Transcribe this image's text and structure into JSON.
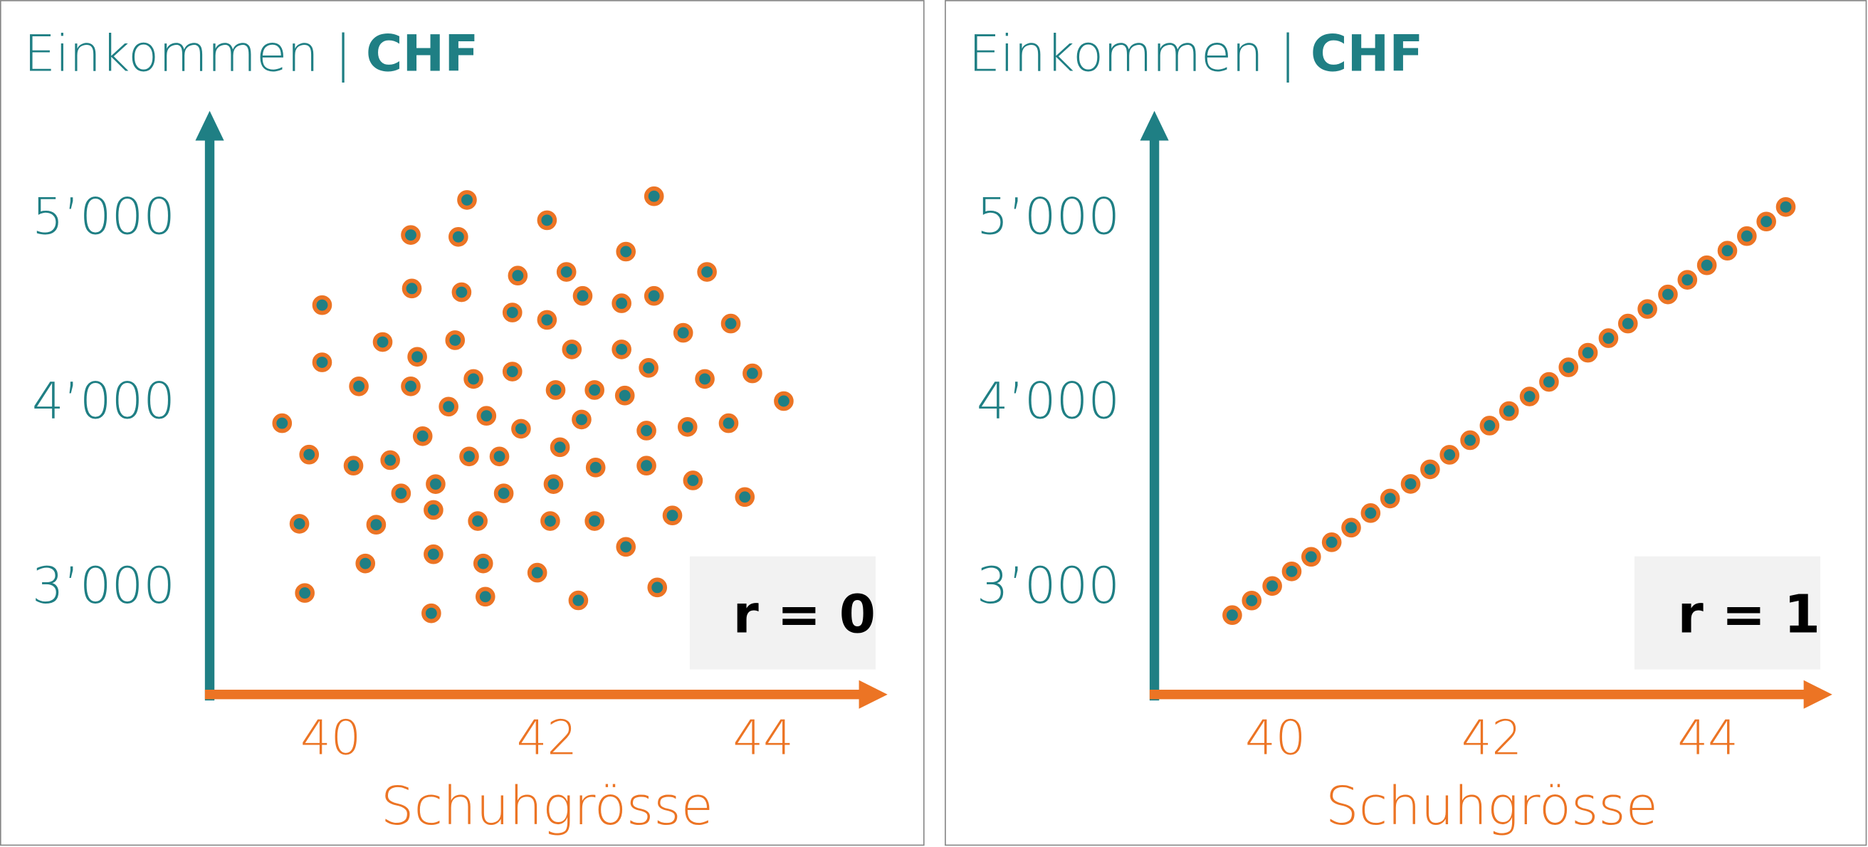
{
  "chart_data": [
    {
      "type": "scatter",
      "ylabel": "Einkommen |",
      "yunit": "CHF",
      "xlabel": "Schuhgrösse",
      "annotation": "r = 0",
      "marker_fill": "#1f7f84",
      "marker_edge": "#ec7424",
      "xlim": [
        38.88,
        45.15
      ],
      "ylim": [
        2430,
        5580
      ],
      "xticks": [
        40,
        42,
        44
      ],
      "yticks": [
        {
          "value": 3000,
          "label": "3’000"
        },
        {
          "value": 4000,
          "label": "4’000"
        },
        {
          "value": 5000,
          "label": "5’000"
        }
      ],
      "x": [
        39.55,
        39.8,
        39.71,
        39.76,
        39.92,
        39.92,
        40.26,
        40.21,
        40.42,
        40.32,
        40.48,
        40.55,
        40.65,
        40.74,
        40.75,
        40.8,
        40.74,
        40.85,
        40.95,
        40.97,
        40.95,
        40.93,
        41.26,
        41.18,
        41.21,
        41.15,
        41.09,
        41.32,
        41.44,
        41.28,
        41.36,
        41.41,
        41.43,
        41.56,
        41.6,
        41.73,
        41.68,
        41.68,
        41.76,
        41.91,
        42,
        42,
        42.08,
        42.12,
        42.06,
        42.03,
        42.18,
        42.33,
        42.23,
        42.32,
        42.44,
        42.45,
        42.44,
        42.29,
        42.73,
        42.69,
        42.69,
        42.72,
        42.73,
        42.99,
        42.99,
        42.94,
        42.92,
        42.92,
        43.02,
        43.26,
        43.3,
        43.35,
        43.16,
        43.48,
        43.7,
        43.46,
        43.68,
        43.9,
        43.83,
        44.19
      ],
      "y": [
        3900,
        3730,
        3355,
        2980,
        4540,
        4230,
        4100,
        3670,
        3350,
        3140,
        4340,
        3700,
        3520,
        4920,
        4630,
        4260,
        4100,
        3830,
        3430,
        3570,
        3190,
        2870,
        5110,
        4910,
        4610,
        4350,
        3990,
        4140,
        3940,
        3720,
        3370,
        3140,
        2960,
        3720,
        3520,
        4700,
        4500,
        4180,
        3870,
        3090,
        5000,
        4460,
        4080,
        3770,
        3570,
        3370,
        4720,
        4590,
        4300,
        3920,
        4080,
        3660,
        3370,
        2940,
        4830,
        4550,
        4300,
        4050,
        3230,
        5130,
        4590,
        4200,
        3860,
        3670,
        3010,
        4390,
        3880,
        3590,
        3400,
        4720,
        4440,
        4140,
        3900,
        4170,
        3500,
        4020
      ]
    },
    {
      "type": "scatter",
      "ylabel": "Einkommen |",
      "yunit": "CHF",
      "xlabel": "Schuhgrösse",
      "annotation": "r = 1",
      "marker_fill": "#1f7f84",
      "marker_edge": "#ec7424",
      "xlim": [
        38.88,
        45.15
      ],
      "ylim": [
        2430,
        5580
      ],
      "xticks": [
        40,
        42,
        44
      ],
      "yticks": [
        {
          "value": 3000,
          "label": "3’000"
        },
        {
          "value": 4000,
          "label": "4’000"
        },
        {
          "value": 5000,
          "label": "5’000"
        }
      ],
      "x": [
        39.6,
        39.78,
        39.97,
        40.15,
        40.33,
        40.52,
        40.7,
        40.88,
        41.06,
        41.25,
        41.43,
        41.61,
        41.8,
        41.98,
        42.16,
        42.35,
        42.53,
        42.71,
        42.89,
        43.08,
        43.26,
        43.44,
        43.63,
        43.81,
        43.99,
        44.18,
        44.36,
        44.54,
        44.72
      ],
      "y": [
        2860,
        2939,
        3018,
        3097,
        3176,
        3255,
        3334,
        3413,
        3492,
        3571,
        3650,
        3729,
        3808,
        3887,
        3966,
        4045,
        4124,
        4203,
        4282,
        4361,
        4440,
        4519,
        4598,
        4677,
        4756,
        4835,
        4914,
        4993,
        5072
      ]
    }
  ]
}
